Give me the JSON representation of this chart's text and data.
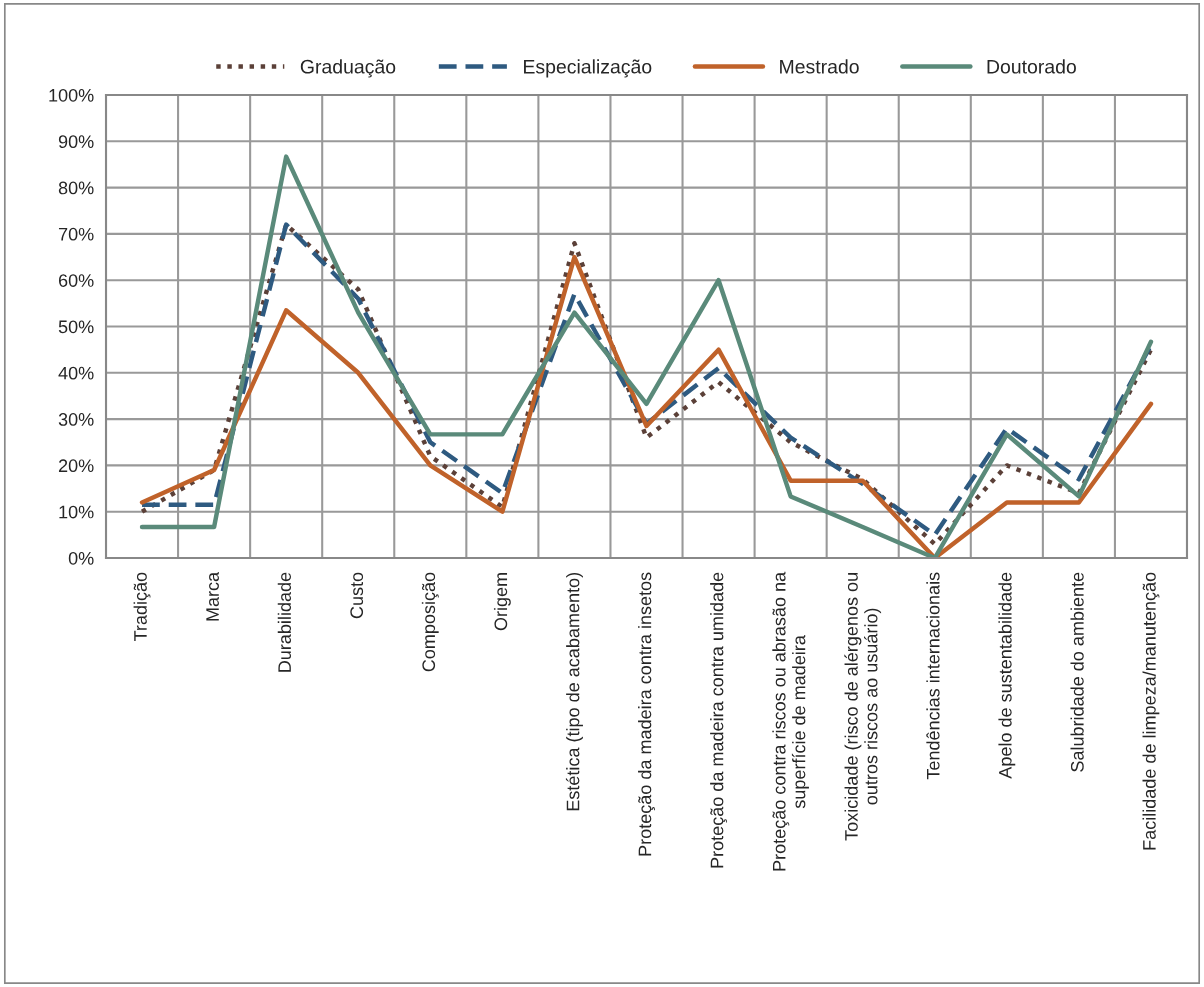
{
  "chart_data": {
    "type": "line",
    "categories": [
      "Tradição",
      "Marca",
      "Durabilidade",
      "Custo",
      "Composição",
      "Origem",
      "Estética (tipo de acabamento)",
      "Proteção da madeira contra insetos",
      "Proteção da madeira contra umidade",
      "Proteção contra riscos ou abrasão na\nsuperfície de madeira",
      "Toxicidade (risco de alérgenos ou\noutros riscos ao usuário)",
      "Tendências internacionais",
      "Apelo de sustentabilidade",
      "Salubridade do ambiente",
      "Facilidade de limpeza/manutenção"
    ],
    "series": [
      {
        "name": "Graduação",
        "color": "#5b4038",
        "line_style": "dotted",
        "values": [
          10,
          19,
          72,
          58,
          22,
          11,
          68,
          26,
          38,
          25,
          17,
          3,
          20,
          14,
          45
        ]
      },
      {
        "name": "Especialização",
        "color": "#2e5a80",
        "line_style": "dashed",
        "values": [
          11.5,
          11.5,
          72,
          56,
          25,
          14,
          57,
          29,
          41,
          26,
          16,
          5,
          28,
          17,
          46
        ]
      },
      {
        "name": "Mestrado",
        "color": "#c0622a",
        "line_style": "solid",
        "values": [
          12,
          19,
          53.5,
          40,
          20,
          10,
          65,
          28.5,
          45,
          16.7,
          16.7,
          0,
          12,
          12,
          33.3
        ]
      },
      {
        "name": "Doutorado",
        "color": "#5a8a7a",
        "line_style": "solid",
        "values": [
          6.7,
          6.7,
          86.7,
          53,
          26.7,
          26.7,
          53,
          33.3,
          60,
          13.3,
          6.7,
          0,
          26.7,
          13.3,
          46.7
        ]
      }
    ],
    "ylim": [
      0,
      100
    ],
    "yticks": [
      {
        "value": 0,
        "label": "0%"
      },
      {
        "value": 10,
        "label": "10%"
      },
      {
        "value": 20,
        "label": "20%"
      },
      {
        "value": 30,
        "label": "30%"
      },
      {
        "value": 40,
        "label": "40%"
      },
      {
        "value": 50,
        "label": "50%"
      },
      {
        "value": 60,
        "label": "60%"
      },
      {
        "value": 70,
        "label": "70%"
      },
      {
        "value": 80,
        "label": "80%"
      },
      {
        "value": 90,
        "label": "90%"
      },
      {
        "value": 100,
        "label": "100%"
      }
    ],
    "grid": true,
    "legend": "top",
    "marker": "none"
  }
}
